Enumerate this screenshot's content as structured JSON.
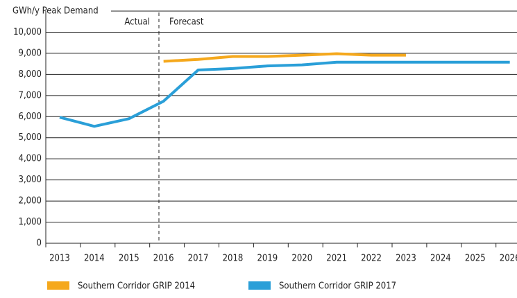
{
  "chart_data": {
    "type": "line",
    "y_label": "GWh/y Peak Demand",
    "annotations": [
      "Actual",
      "Forecast"
    ],
    "categories": [
      "2013",
      "2014",
      "2015",
      "2016",
      "2017",
      "2018",
      "2019",
      "2020",
      "2021",
      "2022",
      "2023",
      "2024",
      "2025",
      "2026"
    ],
    "series": [
      {
        "name": "Southern Corridor GRIP 2014",
        "color": "#f5a81c",
        "values": [
          null,
          null,
          null,
          8620,
          8710,
          8850,
          8850,
          8910,
          8980,
          8910,
          8910,
          null,
          null,
          null
        ]
      },
      {
        "name": "Southern Corridor GRIP 2017",
        "color": "#2a9fd8",
        "values": [
          5970,
          5540,
          5900,
          6730,
          8210,
          8280,
          8400,
          8450,
          8580,
          8580,
          8580,
          8580,
          8580,
          8580
        ]
      }
    ],
    "ylim": [
      0,
      11000
    ],
    "yticks": [
      0,
      {
        "value": 1000,
        "label": "1,000"
      },
      {
        "value": 2000,
        "label": "2,000"
      },
      {
        "value": 3000,
        "label": "3,000"
      },
      {
        "value": 4000,
        "label": "4,000"
      },
      {
        "value": 5000,
        "label": "5,000"
      },
      {
        "value": 6000,
        "label": "6,000"
      },
      {
        "value": 7000,
        "label": "7,000"
      },
      {
        "value": 8000,
        "label": "8,000"
      },
      {
        "value": 9000,
        "label": "9,000"
      },
      {
        "value": 10000,
        "label": "10,000"
      }
    ],
    "grid": true
  }
}
